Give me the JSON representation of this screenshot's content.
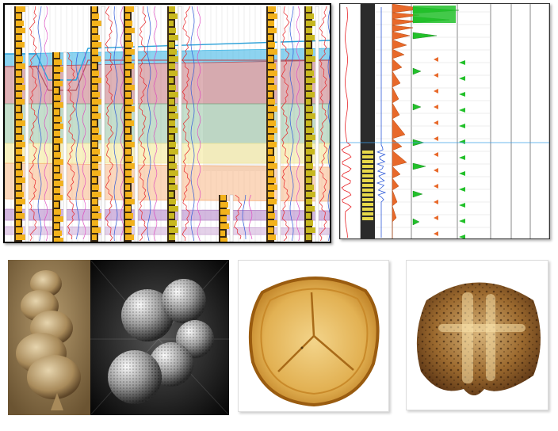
{
  "figure": {
    "panels": [
      "well-log-correlation",
      "single-well-log-chart",
      "foraminifera-sem",
      "pollen-grain",
      "spore-grain"
    ]
  },
  "correlation": {
    "well_count": 8,
    "zone_colors": [
      "#41b6e6",
      "#b5555f",
      "#7fb58f",
      "#f3e79a",
      "#f7b07a",
      "#b688c9",
      "#c9a4d4"
    ],
    "log_colors": {
      "lithology_a": "#f3b21b",
      "lithology_b": "#c8b81f",
      "curve_red": "#e8262a",
      "curve_blue": "#2f5bd9",
      "curve_magenta": "#e040c0"
    }
  },
  "log_chart": {
    "track_colors": {
      "histogram": "#e8692a",
      "green_curve": "#22c02a",
      "red_curve": "#e8262a",
      "blue_curve": "#2f5bd9",
      "marker_line": "#3da0e8"
    }
  },
  "images": {
    "fossil_sem_1": "foraminifera-sepia-sem",
    "fossil_sem_2": "foraminifera-bw-sem",
    "pollen": "trilete-spore-amber",
    "spore": "dark-spore-brown"
  }
}
